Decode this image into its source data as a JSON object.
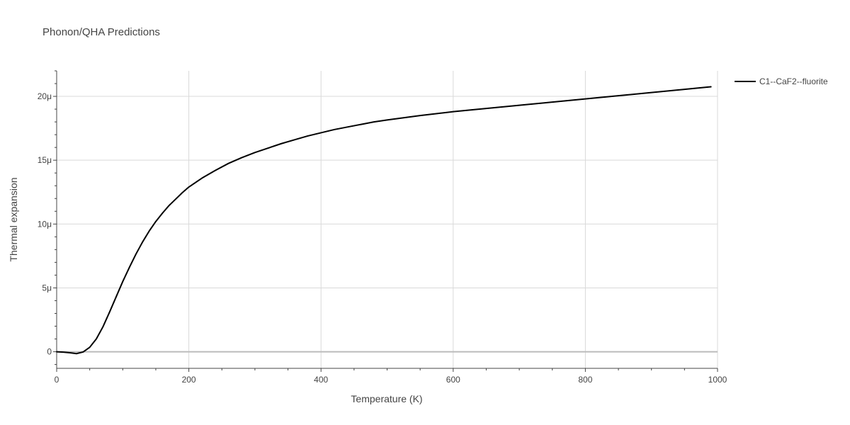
{
  "colors": {
    "text": "#444444",
    "grid": "#d9d9d9",
    "zeroline": "#bbbbbb",
    "axis_line": "#444444",
    "series": "#000000",
    "background": "#ffffff"
  },
  "chart_data": {
    "type": "line",
    "title": "Phonon/QHA Predictions",
    "xlabel": "Temperature (K)",
    "ylabel": "Thermal expansion",
    "xlim": [
      0,
      1000
    ],
    "ylim": [
      -1.3e-06,
      2.2e-05
    ],
    "x_ticks": [
      0,
      200,
      400,
      600,
      800,
      1000
    ],
    "x_tick_labels": [
      "0",
      "200",
      "400",
      "600",
      "800",
      "1000"
    ],
    "y_ticks": [
      0,
      5e-06,
      1e-05,
      1.5e-05,
      2e-05
    ],
    "y_tick_labels": [
      "0",
      "5μ",
      "10μ",
      "15μ",
      "20μ"
    ],
    "grid": true,
    "legend_position": "top-right, outside plot",
    "series": [
      {
        "name": "C1--CaF2--fluorite",
        "color": "#000000",
        "x": [
          0,
          10,
          20,
          30,
          40,
          50,
          60,
          70,
          80,
          90,
          100,
          110,
          120,
          130,
          140,
          150,
          160,
          170,
          180,
          190,
          200,
          220,
          240,
          260,
          280,
          300,
          320,
          340,
          360,
          380,
          400,
          420,
          440,
          460,
          480,
          500,
          550,
          600,
          650,
          700,
          750,
          800,
          850,
          900,
          950,
          990
        ],
        "y": [
          0,
          -3e-08,
          -8e-08,
          -1.5e-07,
          -2e-08,
          3.5e-07,
          1e-06,
          1.95e-06,
          3.1e-06,
          4.3e-06,
          5.5e-06,
          6.6e-06,
          7.65e-06,
          8.6e-06,
          9.45e-06,
          1.02e-05,
          1.085e-05,
          1.145e-05,
          1.195e-05,
          1.245e-05,
          1.29e-05,
          1.36e-05,
          1.42e-05,
          1.475e-05,
          1.52e-05,
          1.56e-05,
          1.595e-05,
          1.63e-05,
          1.66e-05,
          1.69e-05,
          1.715e-05,
          1.74e-05,
          1.76e-05,
          1.78e-05,
          1.8e-05,
          1.815e-05,
          1.85e-05,
          1.88e-05,
          1.905e-05,
          1.93e-05,
          1.955e-05,
          1.98e-05,
          2.005e-05,
          2.03e-05,
          2.055e-05,
          2.075e-05
        ]
      }
    ]
  }
}
